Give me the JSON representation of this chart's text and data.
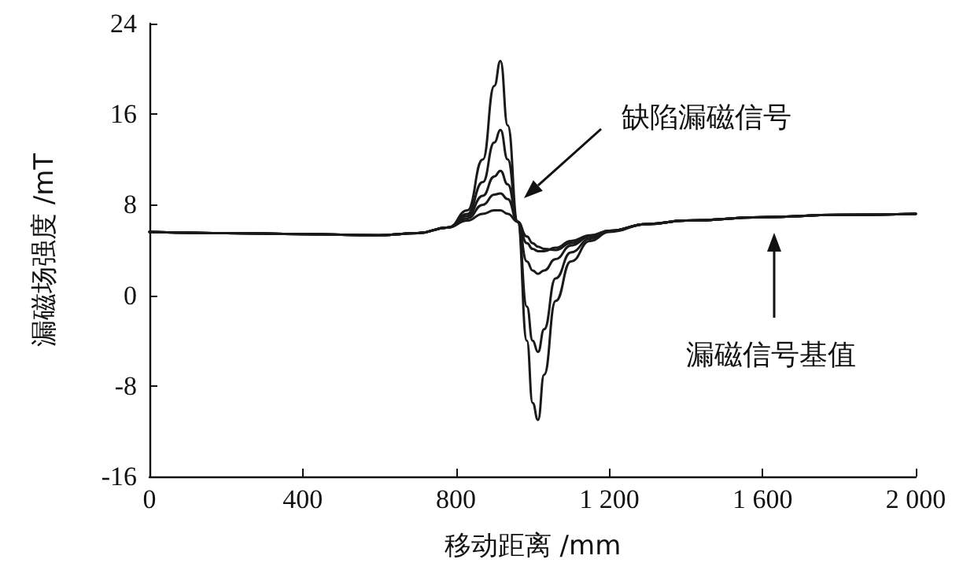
{
  "chart_data": {
    "type": "line",
    "xlabel": "移动距离 /mm",
    "ylabel": "漏磁场强度 /mT",
    "x": [
      0,
      200,
      400,
      600,
      700,
      780,
      830,
      870,
      900,
      916,
      935,
      961,
      985,
      1000,
      1014,
      1030,
      1060,
      1100,
      1150,
      1200,
      1300,
      1400,
      1600,
      1800,
      2000
    ],
    "series": [
      {
        "color": "#1a1a1a",
        "values": [
          5.6,
          5.5,
          5.4,
          5.3,
          5.5,
          6.0,
          7.5,
          12,
          18.5,
          20.7,
          15,
          6.5,
          -4,
          -9.5,
          -11,
          -7,
          -0.5,
          3,
          4.8,
          5.6,
          6.3,
          6.6,
          6.9,
          7.1,
          7.2
        ]
      },
      {
        "color": "#1a1a1a",
        "values": [
          5.6,
          5.5,
          5.4,
          5.3,
          5.5,
          6.0,
          7.2,
          10,
          13.5,
          14.6,
          12,
          6.5,
          -1,
          -4,
          -5,
          -3,
          1.5,
          3.8,
          5.0,
          5.7,
          6.3,
          6.6,
          6.9,
          7.1,
          7.2
        ]
      },
      {
        "color": "#1a1a1a",
        "values": [
          5.6,
          5.5,
          5.4,
          5.3,
          5.5,
          6.0,
          7,
          8.8,
          10.5,
          11,
          9.8,
          6.5,
          3,
          2.2,
          1.9,
          2.2,
          3.2,
          4.4,
          5.2,
          5.7,
          6.3,
          6.6,
          6.9,
          7.1,
          7.2
        ]
      },
      {
        "color": "#1a1a1a",
        "values": [
          5.6,
          5.5,
          5.4,
          5.3,
          5.5,
          6.0,
          6.8,
          8,
          8.9,
          9,
          8.5,
          6.5,
          4.6,
          4.1,
          3.9,
          3.9,
          4.2,
          4.8,
          5.3,
          5.7,
          6.3,
          6.6,
          6.9,
          7.1,
          7.2
        ]
      },
      {
        "color": "#1a1a1a",
        "values": [
          5.6,
          5.5,
          5.4,
          5.3,
          5.5,
          6.0,
          6.6,
          7.2,
          7.5,
          7.5,
          7.2,
          6.5,
          5.2,
          4.6,
          4.3,
          4.1,
          4.0,
          4.6,
          5.2,
          5.7,
          6.3,
          6.6,
          6.9,
          7.1,
          7.2
        ]
      }
    ],
    "xlim": [
      0,
      2000
    ],
    "xticks": [
      0,
      400,
      800,
      {
        "value": 1200,
        "label": "1 200"
      },
      {
        "value": 1600,
        "label": "1 600"
      },
      {
        "value": 2000,
        "label": "2 000"
      }
    ],
    "ylim": [
      -16,
      24
    ],
    "yticks": [
      -16,
      -8,
      0,
      8,
      16,
      24
    ],
    "grid": false,
    "marker": "none",
    "line_style": "solid",
    "annotations": [
      "缺陷漏磁信号",
      "漏磁信号基值"
    ]
  }
}
